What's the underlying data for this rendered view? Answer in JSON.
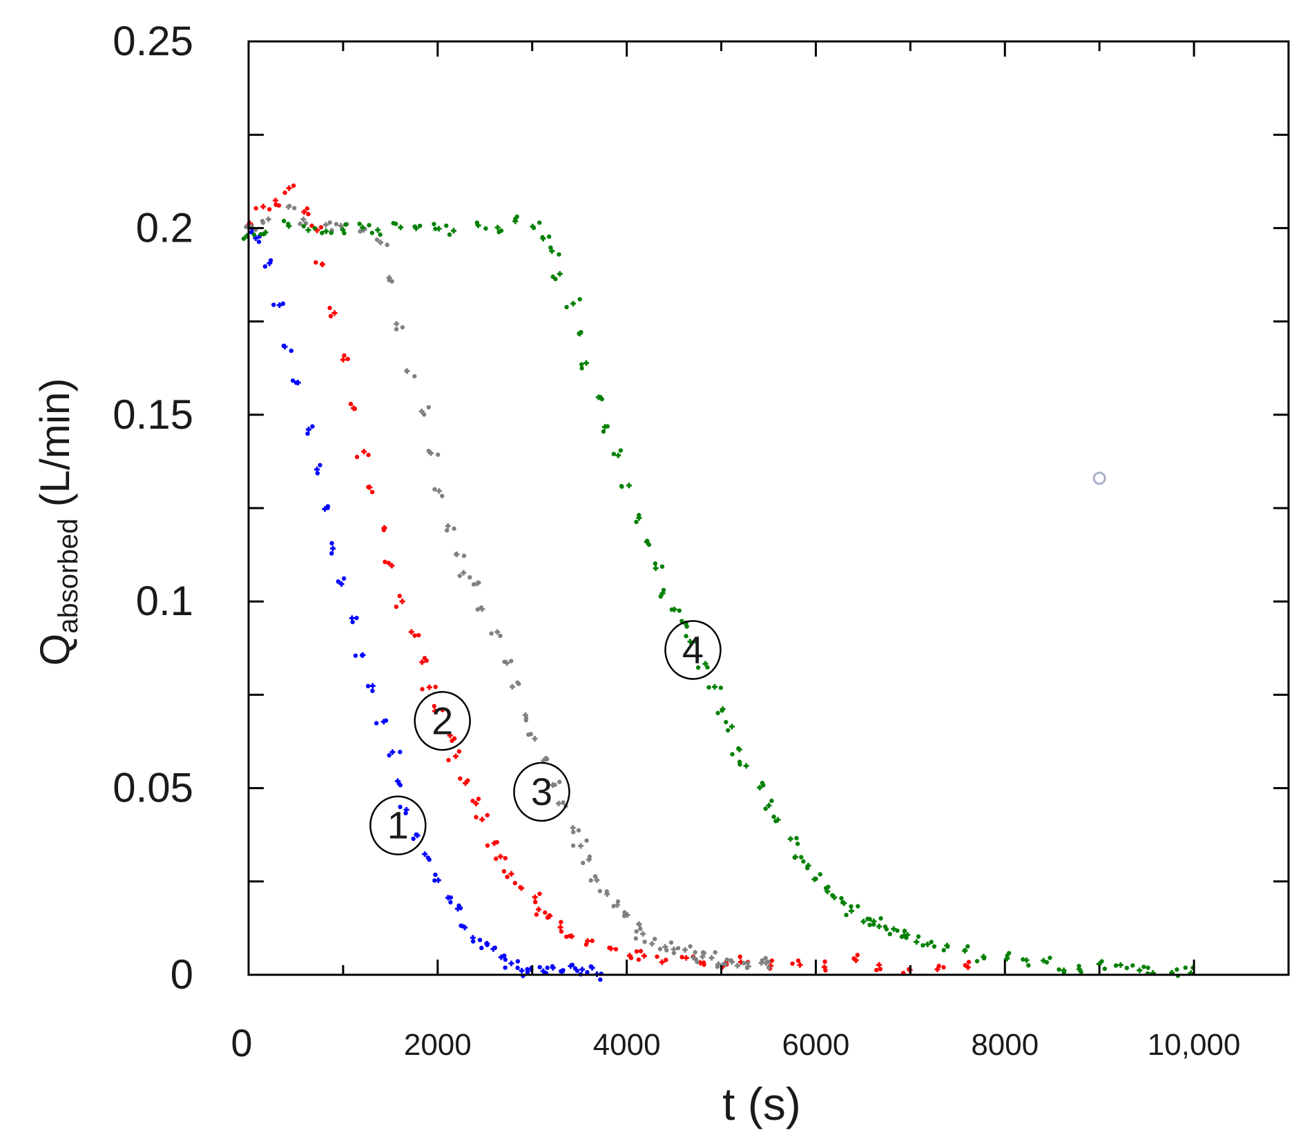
{
  "chart_data": {
    "type": "scatter",
    "title": "",
    "xlabel": "t (s)",
    "ylabel": {
      "main": "Q",
      "subscript": "absorbed",
      "unit": " (L/min)"
    },
    "xlim": [
      0,
      11000
    ],
    "ylim": [
      0,
      0.25
    ],
    "x_tick_labels": [
      {
        "value": 0,
        "label": "0"
      },
      {
        "value": 2000,
        "label": "2000"
      },
      {
        "value": 4000,
        "label": "4000"
      },
      {
        "value": 6000,
        "label": "6000"
      },
      {
        "value": 8000,
        "label": "8000"
      },
      {
        "value": 10000,
        "label": "10,000"
      }
    ],
    "x_minor_ticks": [
      1000,
      3000,
      5000,
      7000,
      9000
    ],
    "y_tick_labels": [
      {
        "value": 0,
        "label": "0"
      },
      {
        "value": 0.05,
        "label": "0.05"
      },
      {
        "value": 0.1,
        "label": "0.1"
      },
      {
        "value": 0.15,
        "label": "0.15"
      },
      {
        "value": 0.2,
        "label": "0.2"
      },
      {
        "value": 0.25,
        "label": "0.25"
      }
    ],
    "y_minor_ticks": [
      0.025,
      0.075,
      0.125,
      0.175,
      0.225
    ],
    "grid": false,
    "series": [
      {
        "name": "1",
        "color": "#0000ff",
        "label_at": [
          1580,
          0.04
        ],
        "points": [
          [
            0,
            0.2
          ],
          [
            100,
            0.198
          ],
          [
            200,
            0.19
          ],
          [
            300,
            0.18
          ],
          [
            400,
            0.168
          ],
          [
            500,
            0.158
          ],
          [
            600,
            0.146
          ],
          [
            700,
            0.135
          ],
          [
            800,
            0.124
          ],
          [
            900,
            0.114
          ],
          [
            1000,
            0.104
          ],
          [
            1100,
            0.095
          ],
          [
            1200,
            0.086
          ],
          [
            1300,
            0.077
          ],
          [
            1400,
            0.068
          ],
          [
            1500,
            0.06
          ],
          [
            1600,
            0.052
          ],
          [
            1700,
            0.045
          ],
          [
            1800,
            0.038
          ],
          [
            1900,
            0.032
          ],
          [
            2000,
            0.026
          ],
          [
            2100,
            0.021
          ],
          [
            2200,
            0.017
          ],
          [
            2300,
            0.013
          ],
          [
            2400,
            0.01
          ],
          [
            2500,
            0.008
          ],
          [
            2600,
            0.006
          ],
          [
            2700,
            0.004
          ],
          [
            2800,
            0.003
          ],
          [
            2900,
            0.002
          ],
          [
            3000,
            0.002
          ],
          [
            3100,
            0.001
          ],
          [
            3200,
            0.001
          ],
          [
            3300,
            0.001
          ],
          [
            3400,
            0.002
          ],
          [
            3500,
            0.001
          ],
          [
            3600,
            0.001
          ],
          [
            3700,
            0.001
          ]
        ]
      },
      {
        "name": "2",
        "color": "#ff0000",
        "label_at": [
          2050,
          0.068
        ],
        "points": [
          [
            0,
            0.202
          ],
          [
            150,
            0.205
          ],
          [
            300,
            0.208
          ],
          [
            450,
            0.21
          ],
          [
            600,
            0.205
          ],
          [
            700,
            0.2
          ],
          [
            800,
            0.19
          ],
          [
            900,
            0.178
          ],
          [
            1000,
            0.165
          ],
          [
            1100,
            0.152
          ],
          [
            1200,
            0.14
          ],
          [
            1300,
            0.13
          ],
          [
            1400,
            0.12
          ],
          [
            1500,
            0.11
          ],
          [
            1600,
            0.1
          ],
          [
            1700,
            0.092
          ],
          [
            1800,
            0.084
          ],
          [
            1900,
            0.077
          ],
          [
            2000,
            0.07
          ],
          [
            2100,
            0.064
          ],
          [
            2200,
            0.058
          ],
          [
            2300,
            0.052
          ],
          [
            2400,
            0.046
          ],
          [
            2500,
            0.041
          ],
          [
            2600,
            0.036
          ],
          [
            2700,
            0.031
          ],
          [
            2800,
            0.027
          ],
          [
            2900,
            0.023
          ],
          [
            3000,
            0.02
          ],
          [
            3100,
            0.017
          ],
          [
            3200,
            0.015
          ],
          [
            3300,
            0.013
          ],
          [
            3400,
            0.011
          ],
          [
            3600,
            0.009
          ],
          [
            3800,
            0.007
          ],
          [
            4000,
            0.006
          ],
          [
            4200,
            0.005
          ],
          [
            4400,
            0.004
          ],
          [
            4600,
            0.004
          ],
          [
            4800,
            0.003
          ],
          [
            5000,
            0.003
          ],
          [
            5200,
            0.003
          ],
          [
            5500,
            0.003
          ],
          [
            5800,
            0.002
          ],
          [
            6100,
            0.002
          ],
          [
            6400,
            0.003
          ],
          [
            6700,
            0.002
          ],
          [
            7000,
            0.002
          ],
          [
            7300,
            0.002
          ],
          [
            7600,
            0.002
          ]
        ]
      },
      {
        "name": "3",
        "color": "#808080",
        "label_at": [
          3100,
          0.049
        ],
        "points": [
          [
            0,
            0.2
          ],
          [
            200,
            0.203
          ],
          [
            400,
            0.205
          ],
          [
            600,
            0.203
          ],
          [
            800,
            0.2
          ],
          [
            1000,
            0.2
          ],
          [
            1200,
            0.199
          ],
          [
            1400,
            0.196
          ],
          [
            1500,
            0.186
          ],
          [
            1600,
            0.174
          ],
          [
            1700,
            0.162
          ],
          [
            1800,
            0.15
          ],
          [
            1900,
            0.14
          ],
          [
            2000,
            0.13
          ],
          [
            2100,
            0.12
          ],
          [
            2200,
            0.112
          ],
          [
            2300,
            0.108
          ],
          [
            2400,
            0.104
          ],
          [
            2500,
            0.098
          ],
          [
            2600,
            0.091
          ],
          [
            2700,
            0.084
          ],
          [
            2800,
            0.077
          ],
          [
            2900,
            0.07
          ],
          [
            3000,
            0.063
          ],
          [
            3100,
            0.057
          ],
          [
            3200,
            0.051
          ],
          [
            3300,
            0.045
          ],
          [
            3400,
            0.04
          ],
          [
            3500,
            0.035
          ],
          [
            3600,
            0.03
          ],
          [
            3700,
            0.026
          ],
          [
            3800,
            0.022
          ],
          [
            3900,
            0.019
          ],
          [
            4000,
            0.016
          ],
          [
            4100,
            0.013
          ],
          [
            4200,
            0.011
          ],
          [
            4300,
            0.009
          ],
          [
            4400,
            0.008
          ],
          [
            4500,
            0.007
          ],
          [
            4600,
            0.006
          ],
          [
            4700,
            0.005
          ],
          [
            4800,
            0.004
          ],
          [
            4900,
            0.004
          ],
          [
            5000,
            0.003
          ],
          [
            5100,
            0.003
          ],
          [
            5200,
            0.003
          ],
          [
            5300,
            0.003
          ],
          [
            5400,
            0.003
          ],
          [
            5500,
            0.003
          ]
        ]
      },
      {
        "name": "4",
        "color": "#008000",
        "label_at": [
          4700,
          0.087
        ],
        "points": [
          [
            0,
            0.198
          ],
          [
            200,
            0.199
          ],
          [
            400,
            0.2
          ],
          [
            600,
            0.2
          ],
          [
            800,
            0.2
          ],
          [
            1000,
            0.2
          ],
          [
            1200,
            0.2
          ],
          [
            1400,
            0.2
          ],
          [
            1600,
            0.2
          ],
          [
            1800,
            0.2
          ],
          [
            2000,
            0.2
          ],
          [
            2200,
            0.2
          ],
          [
            2400,
            0.201
          ],
          [
            2600,
            0.201
          ],
          [
            2800,
            0.201
          ],
          [
            3000,
            0.2
          ],
          [
            3100,
            0.198
          ],
          [
            3200,
            0.194
          ],
          [
            3300,
            0.188
          ],
          [
            3400,
            0.18
          ],
          [
            3500,
            0.172
          ],
          [
            3600,
            0.163
          ],
          [
            3700,
            0.155
          ],
          [
            3800,
            0.147
          ],
          [
            3900,
            0.139
          ],
          [
            4000,
            0.131
          ],
          [
            4100,
            0.123
          ],
          [
            4200,
            0.116
          ],
          [
            4300,
            0.109
          ],
          [
            4400,
            0.103
          ],
          [
            4500,
            0.098
          ],
          [
            4600,
            0.094
          ],
          [
            4700,
            0.089
          ],
          [
            4800,
            0.083
          ],
          [
            4900,
            0.077
          ],
          [
            5000,
            0.071
          ],
          [
            5100,
            0.066
          ],
          [
            5200,
            0.061
          ],
          [
            5300,
            0.056
          ],
          [
            5400,
            0.051
          ],
          [
            5500,
            0.046
          ],
          [
            5600,
            0.041
          ],
          [
            5700,
            0.036
          ],
          [
            5800,
            0.032
          ],
          [
            5900,
            0.029
          ],
          [
            6000,
            0.026
          ],
          [
            6100,
            0.023
          ],
          [
            6200,
            0.021
          ],
          [
            6300,
            0.019
          ],
          [
            6400,
            0.017
          ],
          [
            6500,
            0.015
          ],
          [
            6600,
            0.014
          ],
          [
            6700,
            0.013
          ],
          [
            6800,
            0.012
          ],
          [
            6900,
            0.011
          ],
          [
            7000,
            0.01
          ],
          [
            7100,
            0.009
          ],
          [
            7200,
            0.008
          ],
          [
            7400,
            0.007
          ],
          [
            7600,
            0.006
          ],
          [
            7800,
            0.005
          ],
          [
            8000,
            0.004
          ],
          [
            8200,
            0.003
          ],
          [
            8400,
            0.003
          ],
          [
            8600,
            0.002
          ],
          [
            8800,
            0.002
          ],
          [
            9000,
            0.002
          ],
          [
            9200,
            0.002
          ],
          [
            9400,
            0.001
          ],
          [
            9600,
            0.001
          ],
          [
            9800,
            0.001
          ],
          [
            10000,
            0.001
          ]
        ]
      }
    ],
    "annotations": [
      {
        "type": "hollow-marker",
        "x": 9000,
        "y": 0.133,
        "color": "#aab0c8"
      }
    ]
  }
}
